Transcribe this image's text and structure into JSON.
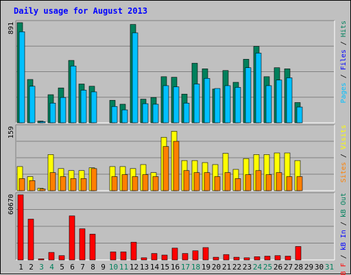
{
  "chart_data": {
    "type": "bar",
    "title": "Daily usage for August 2013",
    "x": [
      "1",
      "2",
      "3",
      "4",
      "5",
      "6",
      "7",
      "8",
      "9",
      "10",
      "11",
      "12",
      "13",
      "14",
      "15",
      "16",
      "17",
      "18",
      "19",
      "20",
      "21",
      "22",
      "23",
      "24",
      "25",
      "26",
      "27",
      "28",
      "29",
      "30",
      "31"
    ],
    "weekend_days": [
      3,
      4,
      10,
      11,
      17,
      18,
      24,
      25,
      31
    ],
    "panels": [
      {
        "id": "hits-files-pages",
        "y_max_label": "891",
        "ylim": [
          0,
          891
        ],
        "series": [
          {
            "name": "Hits",
            "color": "#00805c",
            "values": [
              891,
              385,
              15,
              250,
              310,
              555,
              345,
              325,
              0,
              200,
              165,
              875,
              210,
              225,
              410,
              405,
              255,
              530,
              480,
              300,
              465,
              360,
              565,
              680,
              410,
              490,
              480,
              180
            ]
          },
          {
            "name": "Files",
            "color": "#00c0ff",
            "values": [
              810,
              325,
              10,
              175,
              225,
              505,
              290,
              275,
              0,
              145,
              115,
              800,
              170,
              165,
              330,
              320,
              175,
              345,
              395,
              305,
              330,
              315,
              490,
              620,
              330,
              380,
              400,
              140
            ]
          },
          {
            "name": "Pages",
            "color": "#00c0ff",
            "values": []
          }
        ]
      },
      {
        "id": "visits-sites",
        "y_max_label": "159",
        "ylim": [
          0,
          159
        ],
        "series": [
          {
            "name": "Visits",
            "color": "#ffff00",
            "values": [
              60,
              35,
              6,
              90,
              55,
              50,
              50,
              57,
              0,
              60,
              60,
              55,
              65,
              45,
              133,
              148,
              75,
              75,
              70,
              65,
              93,
              53,
              80,
              90,
              90,
              94,
              94,
              75
            ]
          },
          {
            "name": "Sites",
            "color": "#ff8000",
            "values": [
              30,
              25,
              4,
              45,
              35,
              30,
              30,
              55,
              0,
              35,
              40,
              35,
              40,
              35,
              110,
              123,
              50,
              45,
              45,
              35,
              45,
              30,
              40,
              50,
              40,
              45,
              35,
              35
            ]
          }
        ]
      },
      {
        "id": "kb-f-in-out",
        "y_max_label": "60670",
        "ylim": [
          0,
          60670
        ],
        "series": [
          {
            "name": "KB F",
            "color": "#ff0000",
            "values": [
              60670,
              38000,
              1000,
              7000,
              4000,
              41000,
              29000,
              24000,
              0,
              7500,
              7500,
              16500,
              2000,
              6000,
              4500,
              11000,
              6000,
              8500,
              11500,
              2500,
              5000,
              2500,
              2000,
              3000,
              3500,
              4000,
              3500,
              12500
            ]
          },
          {
            "name": "KB In",
            "color": "#0000ff",
            "values": []
          },
          {
            "name": "KB Out",
            "color": "#00805c",
            "values": []
          }
        ]
      }
    ],
    "right_labels": {
      "top": [
        {
          "text": "Pages",
          "color": "#00c0ff"
        },
        {
          "text": " / ",
          "color": "#000000"
        },
        {
          "text": "Files",
          "color": "#0000ff"
        },
        {
          "text": " / ",
          "color": "#000000"
        },
        {
          "text": "Hits",
          "color": "#00805c"
        }
      ],
      "middle": [
        {
          "text": "Sites",
          "color": "#ff8000"
        },
        {
          "text": " / ",
          "color": "#000000"
        },
        {
          "text": "Visits",
          "color": "#ffff00"
        }
      ],
      "bottom": [
        {
          "text": "kB F",
          "color": "#ff0000"
        },
        {
          "text": " / ",
          "color": "#000000"
        },
        {
          "text": "kB In",
          "color": "#0000ff"
        },
        {
          "text": " / ",
          "color": "#000000"
        },
        {
          "text": "kB Out",
          "color": "#00805c"
        }
      ]
    },
    "grid": true,
    "colors": {
      "background": "#c0c0c0",
      "title": "#0000ff",
      "weekday_label": "#000000",
      "weekend_label": "#00805c"
    }
  }
}
